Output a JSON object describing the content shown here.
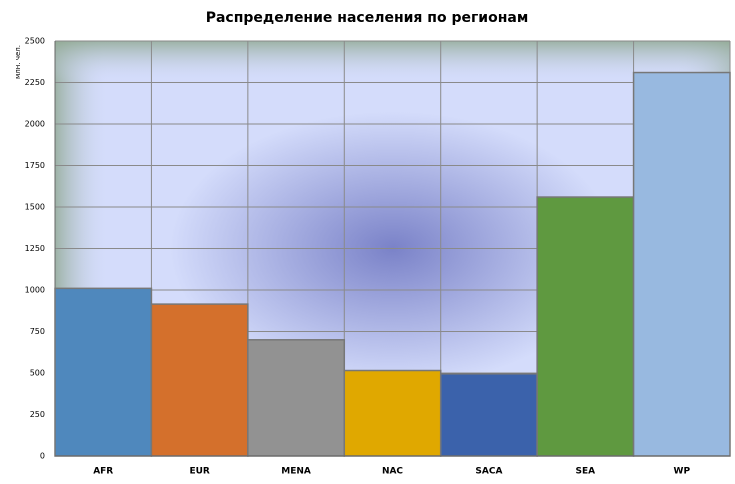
{
  "chart_data": {
    "type": "bar",
    "title": "Распределение населения по регионам",
    "y_label": "млн. чел.",
    "categories": [
      "AFR",
      "EUR",
      "MENA",
      "NAC",
      "SACA",
      "SEA",
      "WP"
    ],
    "values": [
      1010,
      915,
      700,
      515,
      495,
      1560,
      2310
    ],
    "colors": [
      "#4f88bd",
      "#d4702c",
      "#929292",
      "#e0a800",
      "#3b62ab",
      "#5f9940",
      "#98b9e0"
    ],
    "ylim": [
      0,
      2500
    ],
    "yticks": [
      0,
      250,
      500,
      750,
      1000,
      1250,
      1500,
      1750,
      2000,
      2250,
      2500
    ],
    "grid": true
  }
}
